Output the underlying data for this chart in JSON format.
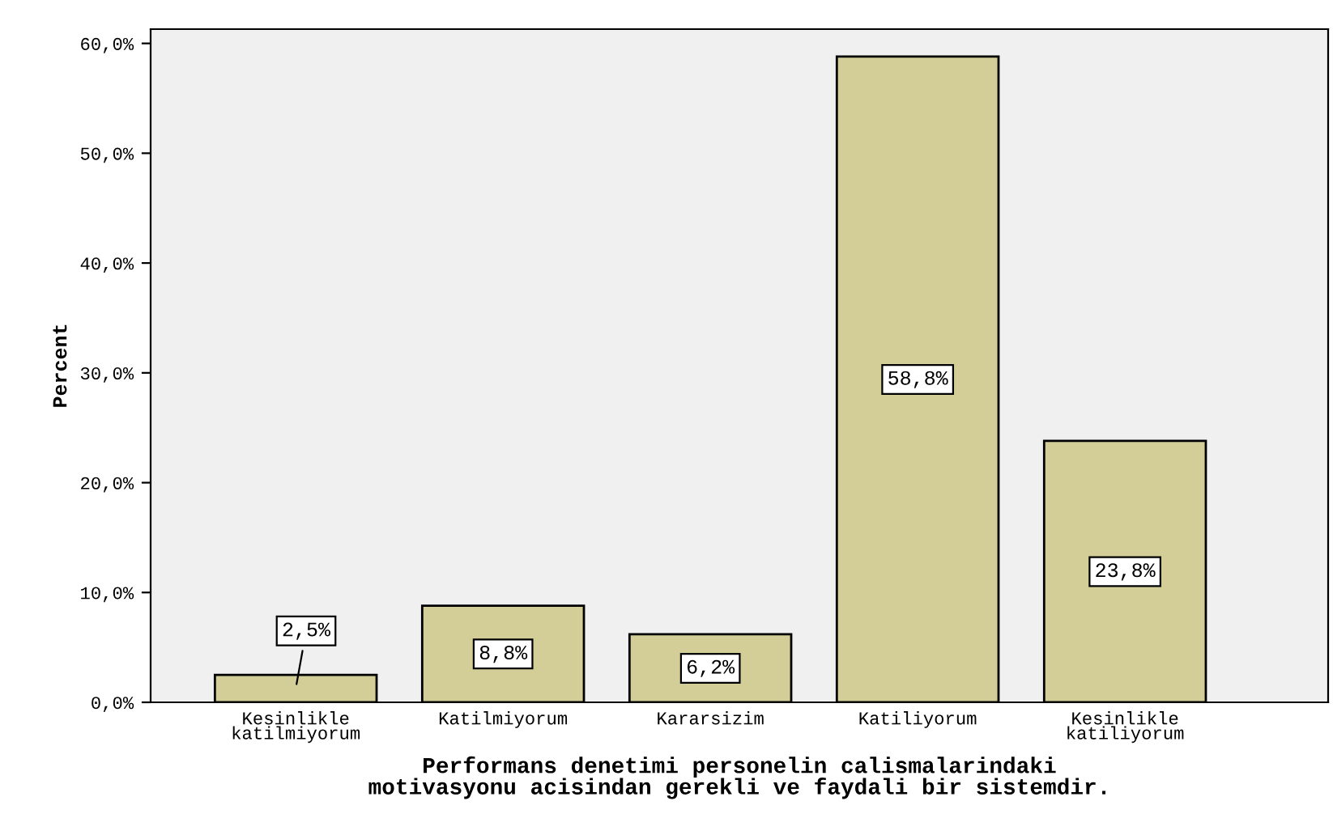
{
  "chart_data": {
    "type": "bar",
    "xlabel": "Performans denetimi personelin calismalarindaki\nmotivasyonu acisindan gerekli ve faydali bir sistemdir.",
    "ylabel": "Percent",
    "categories": [
      "Kesinlikle\nkatilmiyorum",
      "Katilmiyorum",
      "Kararsizim",
      "Katiliyorum",
      "Kesinlikle\nkatiliyorum"
    ],
    "values": [
      2.5,
      8.8,
      6.2,
      58.8,
      23.8
    ],
    "value_labels": [
      "2,5%",
      "8,8%",
      "6,2%",
      "58,8%",
      "23,8%"
    ],
    "color": "#d3ce97",
    "ylim": [
      0,
      61.3
    ],
    "yticks": [
      {
        "value": 0,
        "label": "0,0%"
      },
      {
        "value": 10,
        "label": "10,0%"
      },
      {
        "value": 20,
        "label": "20,0%"
      },
      {
        "value": 30,
        "label": "30,0%"
      },
      {
        "value": 40,
        "label": "40,0%"
      },
      {
        "value": 50,
        "label": "50,0%"
      },
      {
        "value": 60,
        "label": "60,0%"
      }
    ],
    "grid": false
  }
}
